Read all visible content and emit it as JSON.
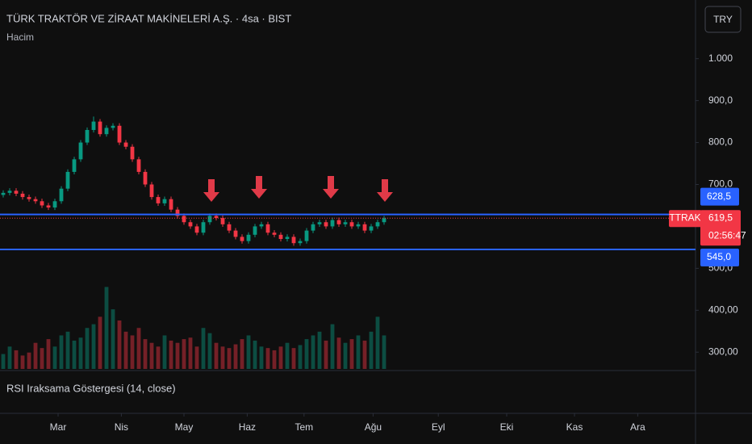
{
  "chart_data": {
    "type": "candlestick",
    "title": "TÜRK TRAKTÖR VE ZİRAAT MAKİNELERİ A.Ş. · 4sa · BIST",
    "subtitle": "Hacim",
    "indicator": "RSI Iraksama Göstergesi (14, close)",
    "currency": "TRY",
    "symbol": "TTRAK",
    "countdown": "02:56:47",
    "up_color": "#089981",
    "down_color": "#f23645",
    "level_color": "#2962ff",
    "open": [
      675,
      680,
      685,
      678,
      670,
      665,
      660,
      650,
      645,
      660,
      690,
      730,
      760,
      800,
      830,
      850,
      820,
      835,
      840,
      800,
      790,
      760,
      730,
      700,
      670,
      655,
      665,
      640,
      625,
      610,
      600,
      585,
      610,
      625,
      620,
      605,
      590,
      575,
      565,
      580,
      600,
      605,
      585,
      580,
      570,
      575,
      560,
      565,
      590,
      605,
      610,
      600,
      615,
      605,
      610,
      600,
      605,
      590,
      600,
      610
    ],
    "high": [
      686,
      691,
      691,
      684,
      676,
      671,
      666,
      656,
      666,
      696,
      736,
      766,
      806,
      836,
      862,
      856,
      841,
      846,
      846,
      806,
      796,
      766,
      736,
      706,
      676,
      671,
      671,
      646,
      631,
      616,
      606,
      616,
      631,
      631,
      626,
      611,
      596,
      581,
      586,
      606,
      611,
      611,
      591,
      586,
      581,
      581,
      571,
      596,
      611,
      616,
      616,
      621,
      621,
      616,
      616,
      611,
      611,
      606,
      616,
      625
    ],
    "low": [
      669,
      674,
      672,
      664,
      659,
      654,
      644,
      639,
      639,
      654,
      684,
      724,
      754,
      794,
      824,
      814,
      814,
      829,
      794,
      784,
      754,
      724,
      694,
      664,
      649,
      649,
      634,
      619,
      604,
      594,
      579,
      579,
      604,
      614,
      599,
      584,
      569,
      559,
      559,
      574,
      594,
      579,
      574,
      564,
      564,
      554,
      554,
      559,
      584,
      599,
      594,
      594,
      599,
      599,
      594,
      594,
      584,
      584,
      594,
      604
    ],
    "close": [
      680,
      685,
      678,
      670,
      665,
      660,
      650,
      645,
      660,
      690,
      730,
      760,
      800,
      830,
      850,
      820,
      835,
      840,
      800,
      790,
      760,
      730,
      700,
      670,
      655,
      665,
      640,
      625,
      610,
      600,
      585,
      610,
      625,
      620,
      605,
      590,
      575,
      565,
      580,
      600,
      605,
      585,
      580,
      570,
      575,
      560,
      565,
      590,
      605,
      610,
      600,
      615,
      605,
      610,
      600,
      605,
      590,
      600,
      610,
      619.5
    ],
    "volume": [
      20,
      30,
      25,
      18,
      22,
      35,
      28,
      40,
      30,
      45,
      50,
      38,
      42,
      55,
      60,
      70,
      110,
      80,
      65,
      50,
      45,
      55,
      40,
      35,
      30,
      45,
      38,
      35,
      40,
      42,
      30,
      55,
      48,
      35,
      30,
      28,
      33,
      40,
      45,
      38,
      30,
      28,
      25,
      30,
      35,
      28,
      32,
      40,
      45,
      50,
      38,
      60,
      42,
      35,
      40,
      45,
      38,
      50,
      70,
      45
    ],
    "vlim": [
      0,
      130
    ],
    "ylim": [
      260,
      1140
    ],
    "yticks": [
      {
        "value": 300,
        "label": "300,00"
      },
      {
        "value": 400,
        "label": "400,00"
      },
      {
        "value": 500,
        "label": "500,0"
      },
      {
        "value": 700,
        "label": "700,0"
      },
      {
        "value": 800,
        "label": "800,0"
      },
      {
        "value": 900,
        "label": "900,0"
      },
      {
        "value": 1000,
        "label": "1.000"
      }
    ],
    "xlim": [
      -0.5,
      107
    ],
    "xticks": [
      {
        "value": 8.5,
        "label": "Mar"
      },
      {
        "value": 18.3,
        "label": "Nis"
      },
      {
        "value": 28,
        "label": "May"
      },
      {
        "value": 37.8,
        "label": "Haz"
      },
      {
        "value": 46.6,
        "label": "Tem"
      },
      {
        "value": 57.3,
        "label": "Ağu"
      },
      {
        "value": 67.4,
        "label": "Eyl"
      },
      {
        "value": 78,
        "label": "Eki"
      },
      {
        "value": 88.5,
        "label": "Kas"
      },
      {
        "value": 98.3,
        "label": "Ara"
      }
    ],
    "levels": [
      {
        "value": 628.5,
        "label": "628,5"
      },
      {
        "value": 545,
        "label": "545,0"
      }
    ],
    "last_price": {
      "value": 619.5,
      "label": "619,5"
    }
  }
}
